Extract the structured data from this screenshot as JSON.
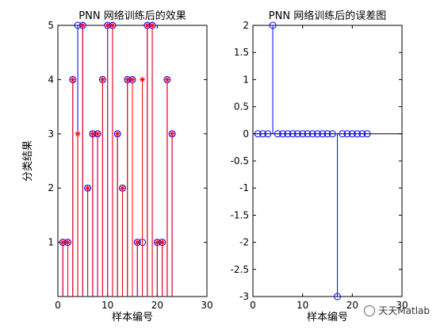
{
  "chart_data": [
    {
      "type": "stem",
      "title": "PNN 网络训练后的效果",
      "xlabel": "样本编号",
      "ylabel": "分类结果",
      "xlim": [
        0,
        30
      ],
      "ylim": [
        0,
        5
      ],
      "xticks": [
        "0",
        "10",
        "20",
        "30"
      ],
      "yticks": [
        "1",
        "2",
        "3",
        "4",
        "5"
      ],
      "grid": false,
      "x": [
        1,
        2,
        3,
        4,
        5,
        6,
        7,
        8,
        9,
        10,
        11,
        12,
        13,
        14,
        15,
        16,
        17,
        18,
        19,
        20,
        21,
        22,
        23
      ],
      "series": [
        {
          "marker": "circle",
          "color": "#0000ff",
          "values": [
            1,
            1,
            4,
            5,
            5,
            2,
            3,
            3,
            4,
            5,
            5,
            3,
            2,
            4,
            4,
            1,
            1,
            5,
            5,
            1,
            1,
            4,
            3
          ]
        },
        {
          "marker": "star",
          "color": "#ff0000",
          "values": [
            1,
            1,
            4,
            3,
            5,
            2,
            3,
            3,
            4,
            5,
            5,
            3,
            2,
            4,
            4,
            1,
            4,
            5,
            5,
            1,
            1,
            4,
            3
          ]
        }
      ]
    },
    {
      "type": "stem",
      "title": "PNN 网络训练后的误差图",
      "xlabel": "样本编号",
      "ylabel": "",
      "xlim": [
        0,
        30
      ],
      "ylim": [
        -3,
        2
      ],
      "xticks": [
        "0",
        "10",
        "20",
        "30"
      ],
      "yticks": [
        "-3",
        "-2.5",
        "-2",
        "-1.5",
        "-1",
        "-0.5",
        "0",
        "0.5",
        "1",
        "1.5",
        "2"
      ],
      "grid": false,
      "baseline": 0,
      "x": [
        1,
        2,
        3,
        4,
        5,
        6,
        7,
        8,
        9,
        10,
        11,
        12,
        13,
        14,
        15,
        16,
        17,
        18,
        19,
        20,
        21,
        22,
        23
      ],
      "series": [
        {
          "marker": "circle",
          "color": "#0000ff",
          "values": [
            0,
            0,
            0,
            2,
            0,
            0,
            0,
            0,
            0,
            0,
            0,
            0,
            0,
            0,
            0,
            0,
            -3,
            0,
            0,
            0,
            0,
            0,
            0
          ]
        }
      ]
    }
  ],
  "watermark": {
    "text": "天天Matlab"
  }
}
